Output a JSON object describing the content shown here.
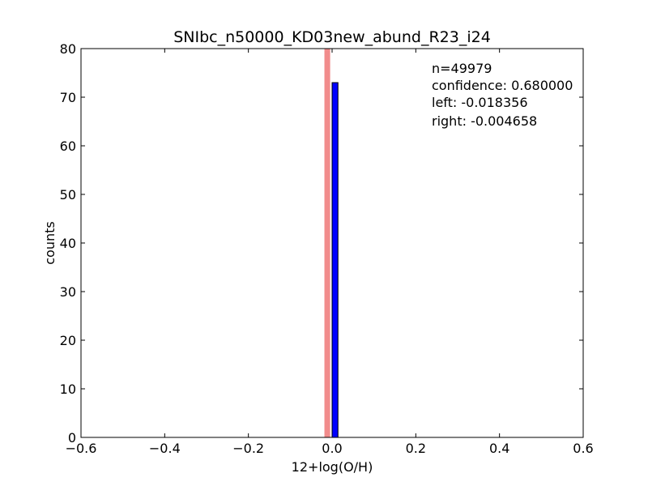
{
  "chart_data": {
    "type": "bar",
    "title": "SNIbc_n50000_KD03new_abund_R23_i24",
    "xlabel": "12+log(O/H)",
    "ylabel": "counts",
    "xlim": [
      -0.6,
      0.6
    ],
    "ylim": [
      0,
      80
    ],
    "xticks": [
      "−0.6",
      "−0.4",
      "−0.2",
      "0.0",
      "0.2",
      "0.4",
      "0.6"
    ],
    "yticks": [
      "0",
      "10",
      "20",
      "30",
      "40",
      "50",
      "60",
      "70",
      "80"
    ],
    "grid": false,
    "bars": [
      {
        "x_start": -0.5,
        "x_end": -0.0146,
        "count": 0
      },
      {
        "x_start": -0.0146,
        "x_end": -0.0006,
        "count": 0
      },
      {
        "x_start": 0.0,
        "x_end": 0.014,
        "count": 73
      },
      {
        "x_start": 0.014,
        "x_end": 0.5,
        "count": 0
      }
    ],
    "confidence_band": {
      "left": -0.018356,
      "right": -0.004658,
      "color": "#f08080"
    },
    "bar_color": "#0000ff",
    "annotations": [
      "n=49979",
      "confidence: 0.680000",
      "left: -0.018356",
      "right: -0.004658"
    ]
  }
}
